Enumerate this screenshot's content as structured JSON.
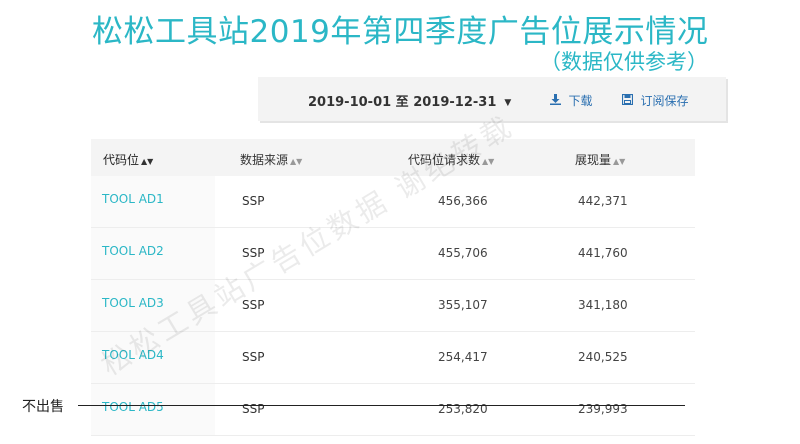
{
  "header": {
    "title": "松松工具站2019年第四季度广告位展示情况",
    "subtitle": "（数据仅供参考）"
  },
  "toolbar": {
    "date_range": "2019-10-01 至 2019-12-31",
    "download_label": "下载",
    "subscribe_label": "订阅保存"
  },
  "table": {
    "columns": [
      "代码位",
      "数据来源",
      "代码位请求数",
      "展现量"
    ],
    "rows": [
      {
        "code": "TOOL AD1",
        "source": "SSP",
        "requests": "456,366",
        "impressions": "442,371"
      },
      {
        "code": "TOOL AD2",
        "source": "SSP",
        "requests": "455,706",
        "impressions": "441,760"
      },
      {
        "code": "TOOL AD3",
        "source": "SSP",
        "requests": "355,107",
        "impressions": "341,180"
      },
      {
        "code": "TOOL AD4",
        "source": "SSP",
        "requests": "254,417",
        "impressions": "240,525"
      },
      {
        "code": "TOOL AD5",
        "source": "SSP",
        "requests": "253,820",
        "impressions": "239,993"
      }
    ]
  },
  "annotation": {
    "not_for_sale": "不出售"
  },
  "watermark": "松松工具站广告位数据 谢绝转载",
  "colors": {
    "accent": "#2bb7c6",
    "link": "#2a6fb0"
  }
}
